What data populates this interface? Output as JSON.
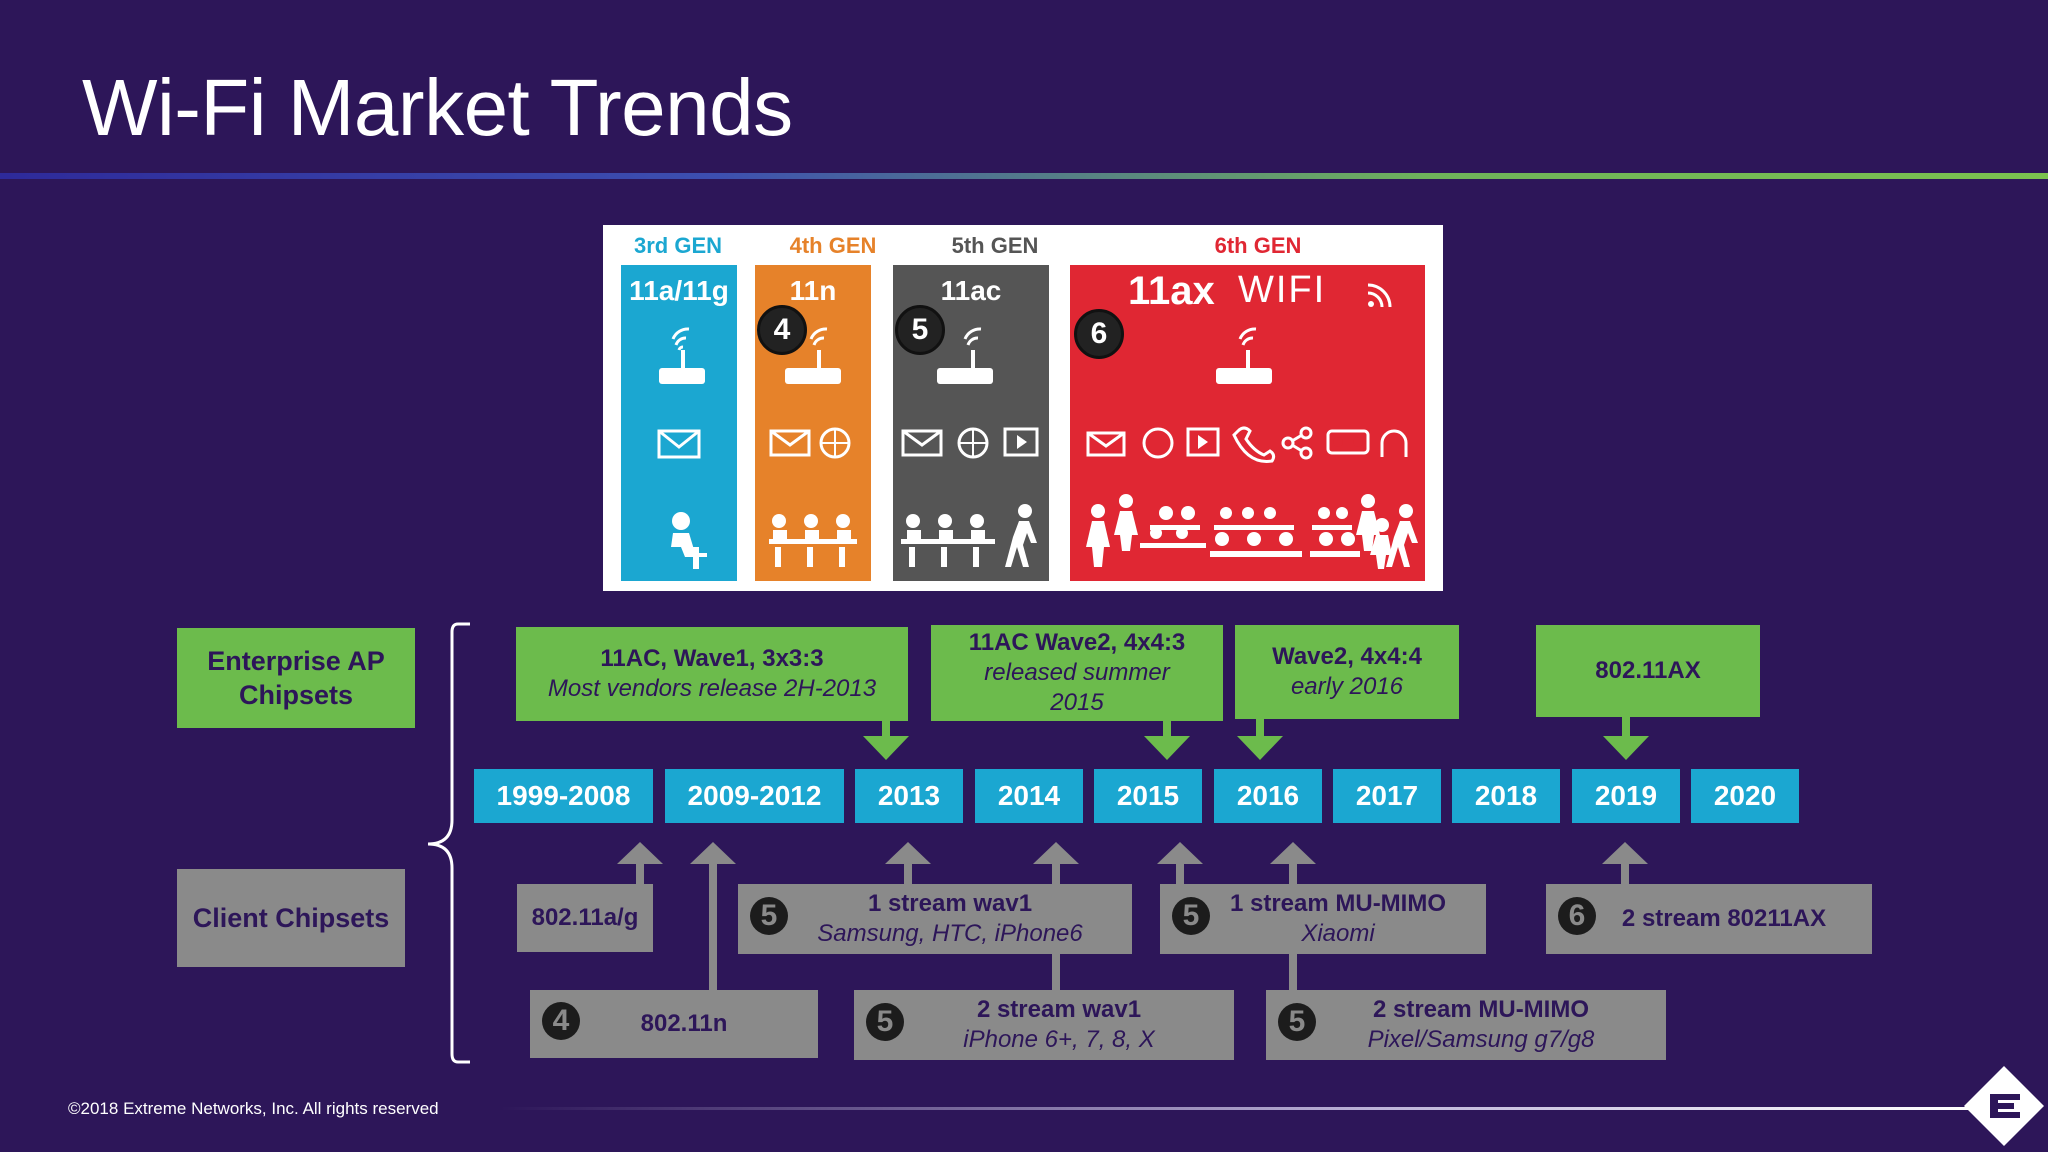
{
  "title": "Wi-Fi Market Trends",
  "generations": [
    {
      "label": "3rd GEN",
      "name": "11a/11g",
      "label_color": "#1ba7d1",
      "color": "#1ba7d1"
    },
    {
      "label": "4th GEN",
      "name": "11n",
      "label_color": "#e6822a",
      "color": "#e6822a",
      "badge": "4"
    },
    {
      "label": "5th GEN",
      "name": "11ac",
      "label_color": "#555555",
      "color": "#555555",
      "badge": "5"
    },
    {
      "label": "6th GEN",
      "name": "11ax",
      "logo": "WIFI",
      "label_color": "#e02733",
      "color": "#e02733",
      "badge": "6"
    }
  ],
  "enterprise": {
    "label": "Enterprise AP Chipsets",
    "items": [
      {
        "line1": "11AC, Wave1, 3x3:3",
        "line2": "Most vendors release 2H-2013"
      },
      {
        "line1": "11AC Wave2, 4x4:3",
        "line2": "released summer",
        "line3": "2015"
      },
      {
        "line1": "Wave2, 4x4:4",
        "line2": "early 2016"
      },
      {
        "line1": "802.11AX"
      }
    ]
  },
  "years": [
    "1999-2008",
    "2009-2012",
    "2013",
    "2014",
    "2015",
    "2016",
    "2017",
    "2018",
    "2019",
    "2020"
  ],
  "client": {
    "label": "Client Chipsets",
    "items": [
      {
        "line1": "802.11a/g"
      },
      {
        "line1": "802.11n",
        "badge": "4"
      },
      {
        "line1": "1 stream wav1",
        "line2": "Samsung, HTC, iPhone6",
        "badge": "5"
      },
      {
        "line1": "2 stream wav1",
        "line2": "iPhone 6+, 7, 8, X",
        "badge": "5"
      },
      {
        "line1": "1 stream MU-MIMO",
        "line2": "Xiaomi",
        "badge": "5"
      },
      {
        "line1": "2 stream MU-MIMO",
        "line2": "Pixel/Samsung g7/g8",
        "badge": "5"
      },
      {
        "line1": "2 stream 80211AX",
        "badge": "6"
      }
    ]
  },
  "footer": "©2018 Extreme Networks, Inc.  All rights reserved",
  "colors": {
    "background": "#2d1659",
    "green": "#6cbb4c",
    "blue": "#1ba7d1",
    "gray": "#8a8a8a"
  }
}
